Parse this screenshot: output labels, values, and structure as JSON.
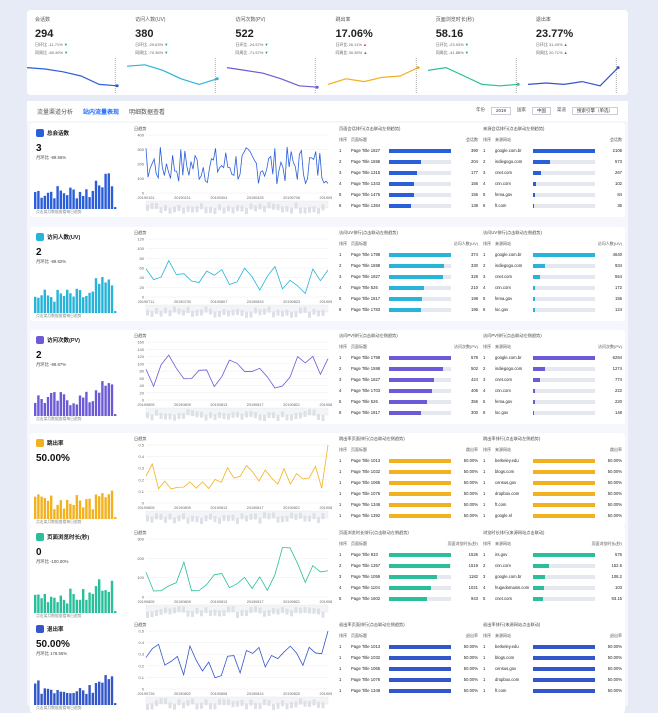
{
  "kpis": [
    {
      "title": "会话数",
      "value": "294",
      "ring": "日环比 -11.71%",
      "yoy": "同周比 -65.49%",
      "dir1": "dn",
      "dir2": "dn",
      "color": "#2b5fd9"
    },
    {
      "title": "访问人数(UV)",
      "value": "380",
      "ring": "日环比 -29.63%",
      "yoy": "同周比 -70.36%",
      "dir1": "dn",
      "dir2": "dn",
      "color": "#28b3d9"
    },
    {
      "title": "访问次数(PV)",
      "value": "522",
      "ring": "日环比 -24.57%",
      "yoy": "同周比 -71.57%",
      "dir1": "dn",
      "dir2": "dn",
      "color": "#6c5bd6"
    },
    {
      "title": "跳出率",
      "value": "17.06%",
      "ring": "日环比 26.11%",
      "yoy": "同周比 30.35%",
      "dir1": "up",
      "dir2": "up",
      "color": "#f2b21f"
    },
    {
      "title": "页面浏览时长(秒)",
      "value": "58.16",
      "ring": "日环比 -23.93%",
      "yoy": "同周比 -41.88%",
      "dir1": "dn",
      "dir2": "dn",
      "color": "#2abf9a"
    },
    {
      "title": "退出率",
      "value": "23.77%",
      "ring": "日环比 31.49%",
      "yoy": "同周比 20.71%",
      "dir1": "up",
      "dir2": "up",
      "color": "#3356c9"
    }
  ],
  "tabs": [
    "流量渠道分析",
    "站内流量表现",
    "明细数据查看"
  ],
  "filters": {
    "year_label": "年份",
    "year": "2019",
    "country_label": "国家",
    "country": "中国",
    "channel_label": "渠道",
    "channel": "搜索引擎（单选）"
  },
  "rows": [
    {
      "title": "总会话数",
      "value": "3",
      "ratio": "月环比 -99.56%",
      "color": "#2b5fd9",
      "note": "点击某月数据查看每日趋势",
      "trend_title": "日趋势",
      "xticks": [
        "20190101",
        "20190211",
        "20190304",
        "20190425",
        "20190706",
        "20190901"
      ],
      "ymax": 400,
      "yticks": [
        "0",
        "100",
        "200",
        "300",
        "400"
      ],
      "t1": "页面会话排行(点击联动左侧趋势)",
      "t1c": "会话数",
      "t2": "来源会话排行(点击联动左侧趋势)",
      "t2c": "会话数",
      "pages": [
        [
          "1",
          "Page Title 1827",
          "390",
          1.0
        ],
        [
          "2",
          "Page Title 1596",
          "204",
          0.52
        ],
        [
          "3",
          "Page Title 1315",
          "177",
          0.45
        ],
        [
          "4",
          "Page Title 1343",
          "156",
          0.4
        ],
        [
          "5",
          "Page Title 1475",
          "156",
          0.4
        ],
        [
          "6",
          "Page Title 1384",
          "138",
          0.35
        ]
      ],
      "sources": [
        [
          "1",
          "google.com.br",
          "2106",
          1.0
        ],
        [
          "2",
          "indiegogo.com",
          "573",
          0.27
        ],
        [
          "3",
          "cnet.com",
          "267",
          0.13
        ],
        [
          "4",
          "cnn.com",
          "102",
          0.05
        ],
        [
          "5",
          "fema.gov",
          "84",
          0.04
        ],
        [
          "6",
          "ft.com",
          "36",
          0.02
        ]
      ]
    },
    {
      "title": "访问人数(UV)",
      "value": "2",
      "ratio": "月环比 -99.82%",
      "color": "#28b3d9",
      "note": "点击某月数据查看每日趋势",
      "trend_title": "日趋势",
      "xticks": [
        "20190711",
        "20190730",
        "20190807",
        "20190815",
        "20190823",
        "20190901"
      ],
      "ymax": 120,
      "yticks": [
        "0",
        "20",
        "40",
        "60",
        "80",
        "100",
        "120"
      ],
      "t1": "访问UV排行(点击联动左侧趋势)",
      "t1c": "访问人数(UV)",
      "t2": "访问UV排行(点击联动左侧趋势)",
      "t2c": "访问人数(UV)",
      "pages": [
        [
          "1",
          "Page Title 1798",
          "374",
          1.0
        ],
        [
          "2",
          "Page Title 1598",
          "330",
          0.88
        ],
        [
          "3",
          "Page Title 1827",
          "328",
          0.87
        ],
        [
          "4",
          "Page Title 526",
          "210",
          0.56
        ],
        [
          "5",
          "Page Title 1817",
          "198",
          0.53
        ],
        [
          "6",
          "Page Title 1783",
          "196",
          0.52
        ]
      ],
      "sources": [
        [
          "1",
          "google.com.br",
          "4640",
          1.0
        ],
        [
          "2",
          "indiegogo.com",
          "934",
          0.2
        ],
        [
          "3",
          "cnet.com",
          "554",
          0.12
        ],
        [
          "4",
          "cnn.com",
          "172",
          0.04
        ],
        [
          "5",
          "fema.gov",
          "156",
          0.03
        ],
        [
          "6",
          "loc.gov",
          "124",
          0.03
        ]
      ]
    },
    {
      "title": "访问次数(PV)",
      "value": "2",
      "ratio": "月环比 -99.87%",
      "color": "#6c5bd6",
      "note": "点击某月数据查看每日趋势",
      "trend_title": "日趋势",
      "xticks": [
        "20190805",
        "20190809",
        "20190813",
        "20190817",
        "20190821",
        "20190825"
      ],
      "ymax": 160,
      "yticks": [
        "0",
        "20",
        "40",
        "60",
        "80",
        "100",
        "120",
        "140",
        "160"
      ],
      "t1": "访问PV排行(点击联动左侧趋势)",
      "t1c": "访问次数(PV)",
      "t2": "访问PV排行(点击联动左侧趋势)",
      "t2c": "访问次数(PV)",
      "pages": [
        [
          "1",
          "Page Title 1798",
          "578",
          1.0
        ],
        [
          "2",
          "Page Title 1598",
          "502",
          0.87
        ],
        [
          "3",
          "Page Title 1827",
          "424",
          0.73
        ],
        [
          "4",
          "Page Title 1703",
          "406",
          0.7
        ],
        [
          "5",
          "Page Title 526",
          "356",
          0.62
        ],
        [
          "6",
          "Page Title 1817",
          "300",
          0.52
        ]
      ],
      "sources": [
        [
          "1",
          "google.com.br",
          "6294",
          1.0
        ],
        [
          "2",
          "indiegogo.com",
          "1274",
          0.2
        ],
        [
          "3",
          "cnet.com",
          "774",
          0.12
        ],
        [
          "4",
          "cnn.com",
          "222",
          0.04
        ],
        [
          "5",
          "fema.gov",
          "220",
          0.03
        ],
        [
          "6",
          "loc.gov",
          "148",
          0.02
        ]
      ]
    },
    {
      "title": "跳出率",
      "value": "50.00%",
      "ratio": "",
      "color": "#f2b21f",
      "note": "点击某月数据查看每日趋势",
      "trend_title": "日趋势",
      "xticks": [
        "20190805",
        "20190809",
        "20190813",
        "20190817",
        "20190821",
        "20190825"
      ],
      "ymax": 0.5,
      "yticks": [
        "0",
        "0.1",
        "0.2",
        "0.3",
        "0.4",
        "0.5"
      ],
      "t1": "跳出率页面排行(点击联动左侧趋势)",
      "t1c": "跳出率",
      "t2": "跳出率排行(点击联动左侧趋势)",
      "t2c": "跳出率",
      "pages": [
        [
          "1",
          "Page Title 1013",
          "50.00%",
          1.0
        ],
        [
          "1",
          "Page Title 1032",
          "50.00%",
          1.0
        ],
        [
          "1",
          "Page Title 1065",
          "50.00%",
          1.0
        ],
        [
          "1",
          "Page Title 1076",
          "50.00%",
          1.0
        ],
        [
          "1",
          "Page Title 1346",
          "50.00%",
          1.0
        ],
        [
          "1",
          "Page Title 1392",
          "50.00%",
          1.0
        ]
      ],
      "sources": [
        [
          "1",
          "berkeley.edu",
          "50.00%",
          1.0
        ],
        [
          "1",
          "blogs.com",
          "50.00%",
          1.0
        ],
        [
          "1",
          "census.gov",
          "50.00%",
          1.0
        ],
        [
          "1",
          "dropbox.com",
          "50.00%",
          1.0
        ],
        [
          "1",
          "ft.com",
          "50.00%",
          1.0
        ],
        [
          "1",
          "google.nl",
          "50.00%",
          1.0
        ]
      ]
    },
    {
      "title": "页面浏览时长(秒)",
      "value": "0",
      "ratio": "月环比 -100.00%",
      "color": "#2abf9a",
      "note": "点击某月数据查看每日趋势",
      "trend_title": "日趋势",
      "xticks": [
        "20190805",
        "20190809",
        "20190813",
        "20190817",
        "20190821",
        "20190825"
      ],
      "ymax": 300,
      "yticks": [
        "0",
        "100",
        "200",
        "300"
      ],
      "t1": "页面浏览时长排行(点击联动左侧趋势)",
      "t1c": "页面浏览时长(秒)",
      "t2": "浏览时长排行(来源网站点击联动)",
      "t2c": "页面浏览时长(秒)",
      "pages": [
        [
          "1",
          "Page Title 933",
          "1526",
          1.0
        ],
        [
          "2",
          "Page Title 1357",
          "1519",
          0.99
        ],
        [
          "3",
          "Page Title 1059",
          "1182",
          0.77
        ],
        [
          "4",
          "Page Title 1104",
          "1021",
          0.67
        ],
        [
          "5",
          "Page Title 1602",
          "943",
          0.62
        ]
      ],
      "sources": [
        [
          "1",
          "irs.gov",
          "576",
          1.0
        ],
        [
          "2",
          "cnn.com",
          "152.6",
          0.26
        ],
        [
          "3",
          "google.com.br",
          "108.2",
          0.19
        ],
        [
          "4",
          "hugedomains.com",
          "103",
          0.18
        ],
        [
          "5",
          "cnet.com",
          "93.15",
          0.16
        ]
      ]
    },
    {
      "title": "退出率",
      "value": "50.00%",
      "ratio": "月环比 178.55%",
      "color": "#3356c9",
      "note": "点击某月数据查看每日趋势",
      "trend_title": "日趋势",
      "xticks": [
        "20190726",
        "20190802",
        "20190808",
        "20190814",
        "20190820",
        "20190901"
      ],
      "ymax": 0.5,
      "yticks": [
        "0",
        "0.1",
        "0.2",
        "0.3",
        "0.4",
        "0.5"
      ],
      "t1": "退出率页面排行(点击联动左侧趋势)",
      "t1c": "退出率",
      "t2": "退出率排行(来源网站点击联动)",
      "t2c": "退出率",
      "pages": [
        [
          "1",
          "Page Title 1013",
          "50.00%",
          1.0
        ],
        [
          "1",
          "Page Title 1032",
          "50.00%",
          1.0
        ],
        [
          "1",
          "Page Title 1065",
          "50.00%",
          1.0
        ],
        [
          "1",
          "Page Title 1076",
          "50.00%",
          1.0
        ],
        [
          "1",
          "Page Title 1348",
          "50.00%",
          1.0
        ]
      ],
      "sources": [
        [
          "1",
          "berkeley.edu",
          "50.00%",
          1.0
        ],
        [
          "1",
          "blogs.com",
          "50.00%",
          1.0
        ],
        [
          "1",
          "census.gov",
          "50.00%",
          1.0
        ],
        [
          "1",
          "dropbox.com",
          "50.00%",
          1.0
        ],
        [
          "1",
          "ft.com",
          "50.00%",
          1.0
        ]
      ]
    }
  ]
}
